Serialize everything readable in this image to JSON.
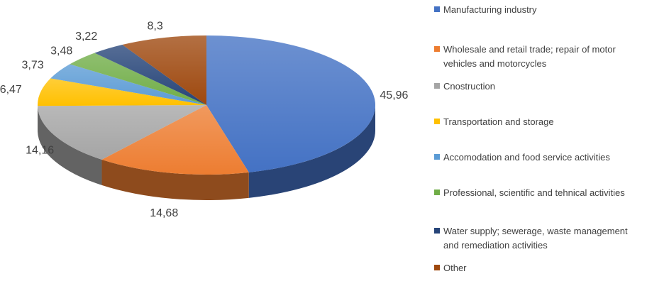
{
  "chart_data": {
    "type": "pie",
    "style": "3d",
    "legend_position": "right",
    "categories": [
      "Manufacturing industry",
      "Wholesale and retail trade; repair of motor vehicles and motorcycles",
      "Cnostruction",
      "Transportation and storage",
      "Accomodation and food service activities",
      "Professional, scientific and tehnical activities",
      "Water supply; sewerage, waste management and remediation activities",
      "Other"
    ],
    "values": [
      45.96,
      14.68,
      14.16,
      6.47,
      3.73,
      3.48,
      3.22,
      8.3
    ],
    "value_labels": [
      "45,96",
      "14,68",
      "14,16",
      "6,47",
      "3,73",
      "3,48",
      "3,22",
      "8,3"
    ],
    "colors": [
      "#4472C4",
      "#ED7D31",
      "#A5A5A5",
      "#FFC000",
      "#5B9BD5",
      "#70AD47",
      "#264478",
      "#9E480E"
    ]
  }
}
